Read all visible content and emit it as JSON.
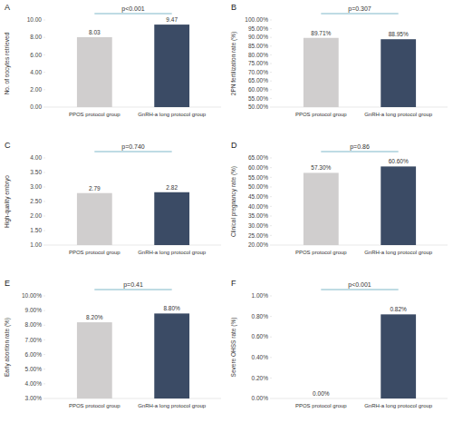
{
  "chart_data": [
    {
      "type": "bar",
      "panel": "A",
      "ylabel": "No. of oocytes retrieved",
      "categories": [
        "PPOS protocol group",
        "GnRH-a long protocol group"
      ],
      "values": [
        8.03,
        9.47
      ],
      "colors": [
        "#d0cece",
        "#3b4b65"
      ],
      "ylim": [
        0,
        10
      ],
      "yticks": [
        {
          "value": 0,
          "label": "0.00"
        },
        {
          "value": 2,
          "label": "2.00"
        },
        {
          "value": 4,
          "label": "4.00"
        },
        {
          "value": 6,
          "label": "6.00"
        },
        {
          "value": 8,
          "label": "8.00"
        },
        {
          "value": 10,
          "label": "10.00"
        }
      ],
      "data_labels": true,
      "annotation": "p<0.001"
    },
    {
      "type": "bar",
      "panel": "B",
      "ylabel": "2PN fertilization rate (%)",
      "categories": [
        "PPOS protocol group",
        "GnRH-a long protocol group"
      ],
      "values": [
        89.71,
        88.95
      ],
      "value_labels": [
        "89.71%",
        "88.95%"
      ],
      "colors": [
        "#d0cece",
        "#3b4b65"
      ],
      "ylim": [
        50,
        100
      ],
      "yticks": [
        {
          "value": 50,
          "label": "50.00%"
        },
        {
          "value": 55,
          "label": "55.00%"
        },
        {
          "value": 60,
          "label": "60.00%"
        },
        {
          "value": 65,
          "label": "65.00%"
        },
        {
          "value": 70,
          "label": "70.00%"
        },
        {
          "value": 75,
          "label": "75.00%"
        },
        {
          "value": 80,
          "label": "80.00%"
        },
        {
          "value": 85,
          "label": "85.00%"
        },
        {
          "value": 90,
          "label": "90.00%"
        },
        {
          "value": 95,
          "label": "95.00%"
        },
        {
          "value": 100,
          "label": "100.00%"
        }
      ],
      "data_labels": true,
      "annotation": "p=0.307"
    },
    {
      "type": "bar",
      "panel": "C",
      "ylabel": "High-quality embryo",
      "categories": [
        "PPOS protocol group",
        "GnRH-a long protocol group"
      ],
      "values": [
        2.79,
        2.82
      ],
      "colors": [
        "#d0cece",
        "#3b4b65"
      ],
      "ylim": [
        1,
        4
      ],
      "yticks": [
        {
          "value": 1,
          "label": "1.00"
        },
        {
          "value": 1.5,
          "label": "1.50"
        },
        {
          "value": 2,
          "label": "2.00"
        },
        {
          "value": 2.5,
          "label": "2.50"
        },
        {
          "value": 3,
          "label": "3.00"
        },
        {
          "value": 3.5,
          "label": "3.50"
        },
        {
          "value": 4,
          "label": "4.00"
        }
      ],
      "data_labels": true,
      "annotation": "p=0.740"
    },
    {
      "type": "bar",
      "panel": "D",
      "ylabel": "Clinical pregnancy rate (%)",
      "categories": [
        "PPOS protocol group",
        "GnRH-a long protocol group"
      ],
      "values": [
        57.3,
        60.6
      ],
      "value_labels": [
        "57.30%",
        "60.60%"
      ],
      "colors": [
        "#d0cece",
        "#3b4b65"
      ],
      "ylim": [
        20,
        65
      ],
      "yticks": [
        {
          "value": 20,
          "label": "20.00%"
        },
        {
          "value": 25,
          "label": "25.00%"
        },
        {
          "value": 30,
          "label": "30.00%"
        },
        {
          "value": 35,
          "label": "35.00%"
        },
        {
          "value": 40,
          "label": "40.00%"
        },
        {
          "value": 45,
          "label": "45.00%"
        },
        {
          "value": 50,
          "label": "50.00%"
        },
        {
          "value": 55,
          "label": "55.00%"
        },
        {
          "value": 60,
          "label": "60.00%"
        },
        {
          "value": 65,
          "label": "65.00%"
        }
      ],
      "data_labels": true,
      "annotation": "p=0.86"
    },
    {
      "type": "bar",
      "panel": "E",
      "ylabel": "Early abortion rate (%)",
      "categories": [
        "PPOS protocol group",
        "GnRH-a long protocol group"
      ],
      "values": [
        8.2,
        8.8
      ],
      "value_labels": [
        "8.20%",
        "8.80%"
      ],
      "colors": [
        "#d0cece",
        "#3b4b65"
      ],
      "ylim": [
        3,
        10
      ],
      "yticks": [
        {
          "value": 3,
          "label": "3.00%"
        },
        {
          "value": 4,
          "label": "4.00%"
        },
        {
          "value": 5,
          "label": "5.00%"
        },
        {
          "value": 6,
          "label": "6.00%"
        },
        {
          "value": 7,
          "label": "7.00%"
        },
        {
          "value": 8,
          "label": "8.00%"
        },
        {
          "value": 9,
          "label": "9.00%"
        },
        {
          "value": 10,
          "label": "10.00%"
        }
      ],
      "data_labels": true,
      "annotation": "p=0.41"
    },
    {
      "type": "bar",
      "panel": "F",
      "ylabel": "Severe OHSS rate (%)",
      "categories": [
        "PPOS protocol group",
        "GnRH-a long protocol group"
      ],
      "values": [
        0,
        0.82
      ],
      "value_labels": [
        "0.00%",
        "0.82%"
      ],
      "colors": [
        "#d0cece",
        "#3b4b65"
      ],
      "ylim": [
        0,
        1
      ],
      "yticks": [
        {
          "value": 0,
          "label": "0.00%"
        },
        {
          "value": 0.2,
          "label": "0.20%"
        },
        {
          "value": 0.4,
          "label": "0.40%"
        },
        {
          "value": 0.6,
          "label": "0.60%"
        },
        {
          "value": 0.8,
          "label": "0.80%"
        },
        {
          "value": 1,
          "label": "1.00%"
        }
      ],
      "data_labels": true,
      "annotation": "p<0.001"
    }
  ]
}
